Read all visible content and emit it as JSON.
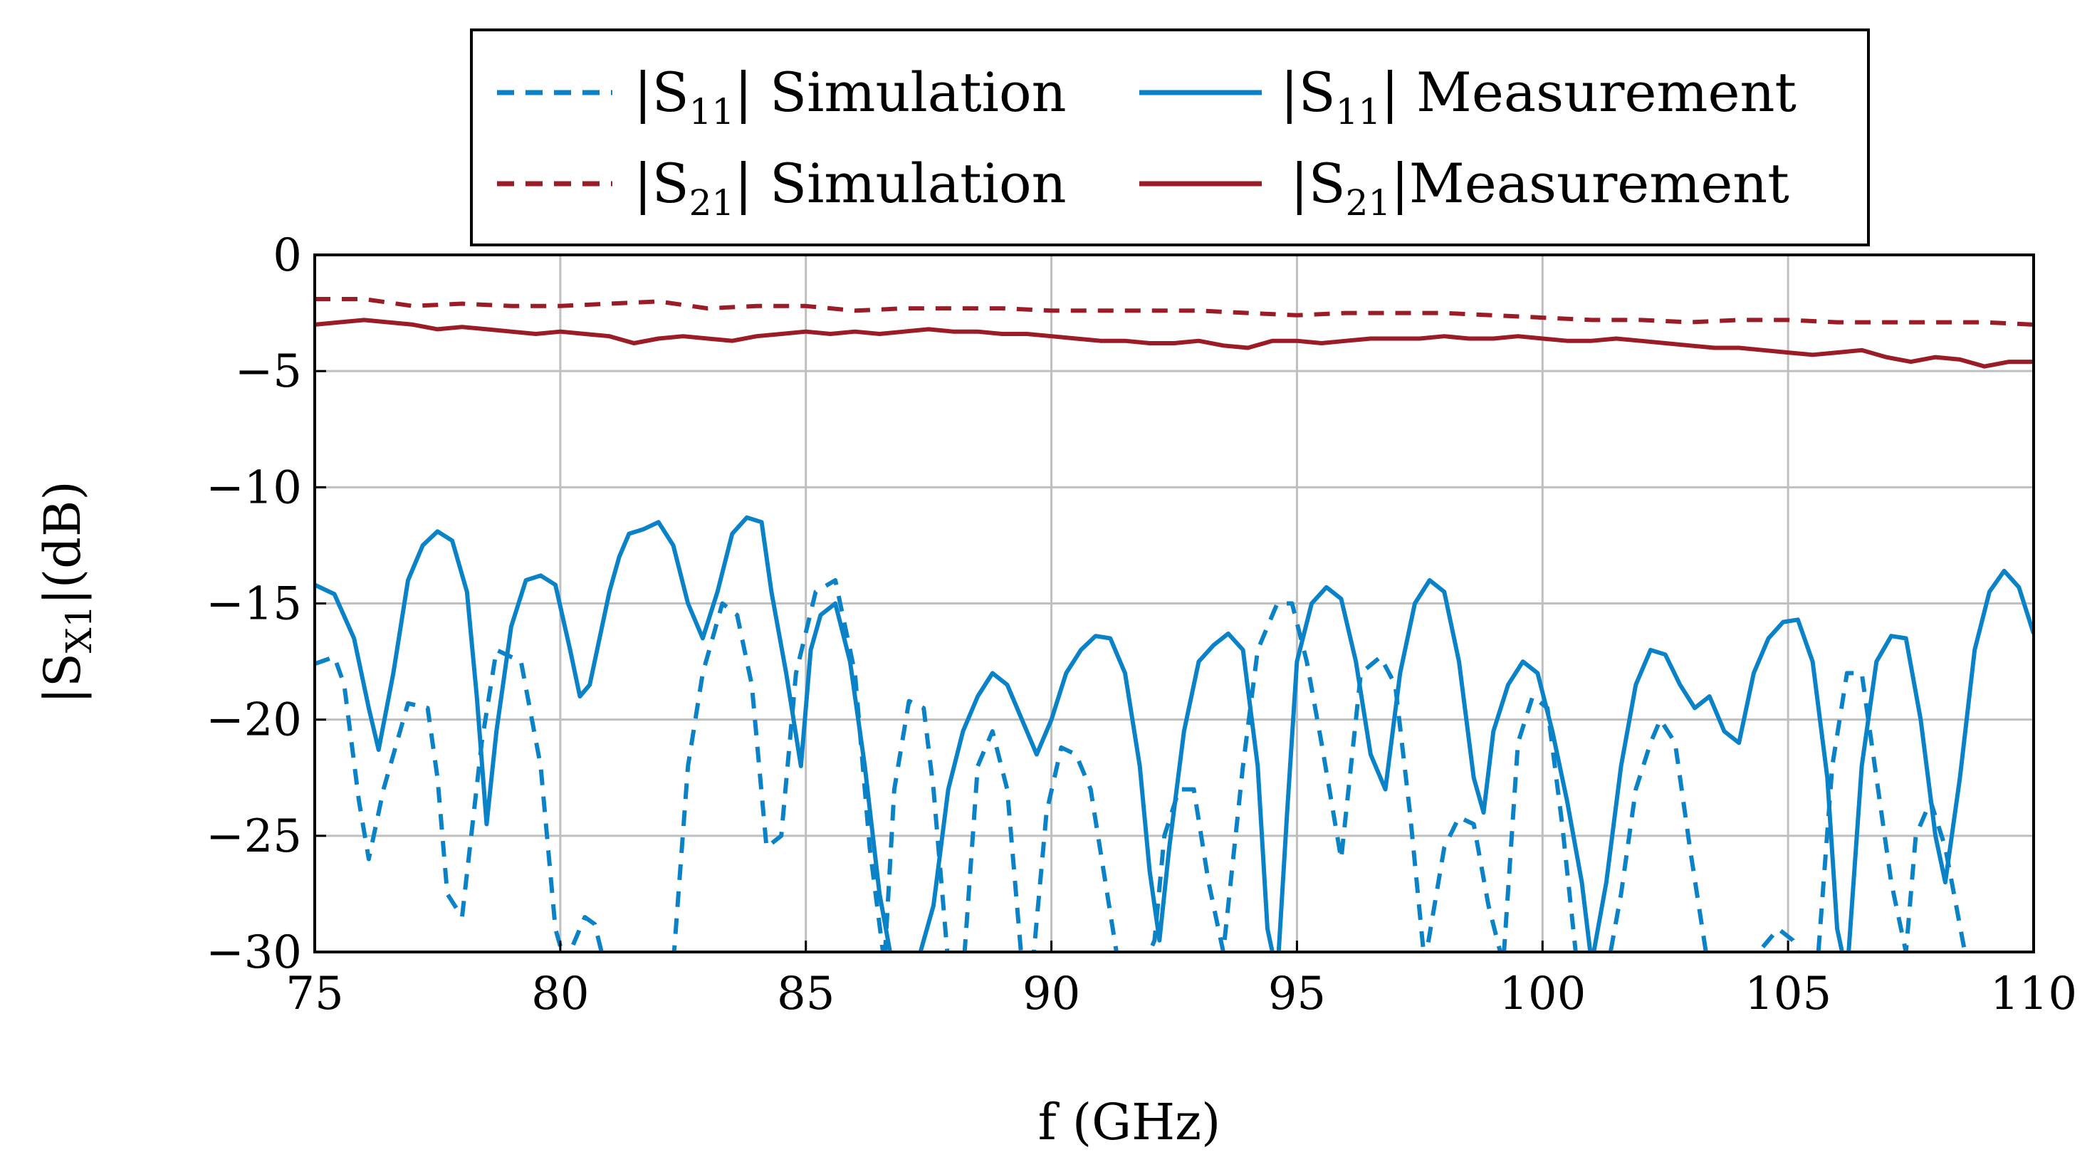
{
  "chart_data": {
    "type": "line",
    "xlabel": "f (GHz)",
    "ylabel": "|S",
    "ylabel_sub": "X1",
    "ylabel_suffix": "|(dB)",
    "xlim": [
      75,
      110
    ],
    "ylim": [
      -30,
      0
    ],
    "xticks": [
      75,
      80,
      85,
      90,
      95,
      100,
      105,
      110
    ],
    "yticks": [
      0,
      -5,
      -10,
      -15,
      -20,
      -25,
      -30
    ],
    "ytick_labels": [
      "0",
      "−5",
      "−10",
      "−15",
      "−20",
      "−25",
      "−30"
    ],
    "grid": true,
    "legend_position": "top-center, above plot",
    "colors": {
      "s11": "#0a82c8",
      "s21": "#9b1b26"
    },
    "series": [
      {
        "name": "|S11| Simulation",
        "legend_pre": "|S",
        "legend_sub": "11",
        "legend_post": "|  Simulation",
        "style": "dashed",
        "color_key": "s11",
        "x": [
          75.0,
          75.4,
          75.6,
          75.9,
          76.1,
          76.4,
          76.9,
          77.3,
          77.5,
          77.7,
          78.0,
          78.4,
          78.7,
          79.2,
          79.6,
          79.9,
          80.1,
          80.3,
          80.5,
          80.7,
          80.9,
          81.2,
          81.5,
          82.0,
          82.3,
          82.6,
          82.9,
          83.3,
          83.6,
          83.9,
          84.2,
          84.5,
          84.8,
          85.2,
          85.6,
          86.0,
          86.3,
          86.6,
          86.8,
          87.1,
          87.4,
          87.6,
          87.9,
          88.2,
          88.5,
          88.8,
          89.1,
          89.4,
          89.6,
          89.9,
          90.2,
          90.5,
          90.8,
          91.1,
          91.4,
          91.8,
          92.1,
          92.3,
          92.6,
          92.9,
          93.2,
          93.5,
          93.9,
          94.2,
          94.6,
          94.9,
          95.2,
          95.5,
          95.9,
          96.3,
          96.7,
          97.0,
          97.3,
          97.6,
          98.0,
          98.3,
          98.6,
          98.9,
          99.2,
          99.5,
          99.8,
          100.1,
          100.4,
          100.7,
          101.0,
          101.3,
          101.6,
          101.9,
          102.2,
          102.4,
          102.7,
          103.0,
          103.4,
          103.8,
          104.1,
          104.4,
          104.8,
          105.1,
          105.4,
          105.6,
          105.9,
          106.2,
          106.5,
          106.8,
          107.1,
          107.4,
          107.6,
          107.9,
          108.2,
          108.6,
          108.9,
          109.2,
          109.5,
          109.8,
          110.0
        ],
        "y": [
          -17.6,
          -17.3,
          -18.5,
          -23.5,
          -26.0,
          -23.0,
          -19.3,
          -19.5,
          -22.5,
          -27.5,
          -28.5,
          -21.0,
          -17.0,
          -17.5,
          -22.0,
          -29.0,
          -30.5,
          -29.5,
          -28.5,
          -28.8,
          -30.5,
          -31.0,
          -31.0,
          -31.0,
          -30.5,
          -22.0,
          -18.0,
          -15.0,
          -15.5,
          -18.5,
          -25.5,
          -25.0,
          -18.0,
          -14.5,
          -14.0,
          -18.0,
          -25.5,
          -30.5,
          -23.0,
          -19.2,
          -19.5,
          -23.0,
          -30.5,
          -31.0,
          -22.0,
          -20.5,
          -23.0,
          -30.5,
          -31.0,
          -24.0,
          -21.2,
          -21.5,
          -23.0,
          -27.0,
          -31.0,
          -31.0,
          -29.5,
          -25.0,
          -23.0,
          -23.0,
          -27.0,
          -30.0,
          -22.0,
          -17.0,
          -15.0,
          -15.0,
          -17.5,
          -21.0,
          -26.0,
          -18.0,
          -17.3,
          -18.5,
          -24.0,
          -30.5,
          -25.5,
          -24.2,
          -24.5,
          -28.0,
          -30.5,
          -21.0,
          -19.0,
          -19.5,
          -24.5,
          -30.5,
          -31.0,
          -31.0,
          -27.5,
          -23.0,
          -21.0,
          -20.0,
          -21.0,
          -25.5,
          -31.0,
          -31.0,
          -31.0,
          -30.0,
          -29.0,
          -29.5,
          -31.0,
          -30.5,
          -22.0,
          -18.0,
          -18.0,
          -22.5,
          -27.0,
          -30.0,
          -25.0,
          -23.5,
          -25.5,
          -30.0,
          -31.0,
          -31.0,
          -31.0,
          -31.0,
          -31.0
        ]
      },
      {
        "name": "|S11| Measurement",
        "legend_pre": "|S",
        "legend_sub": "11",
        "legend_post": "|  Measurement",
        "style": "solid",
        "color_key": "s11",
        "x": [
          75.0,
          75.4,
          75.8,
          76.1,
          76.3,
          76.6,
          76.9,
          77.2,
          77.5,
          77.8,
          78.1,
          78.3,
          78.5,
          78.7,
          79.0,
          79.3,
          79.6,
          79.9,
          80.2,
          80.4,
          80.6,
          80.8,
          81.0,
          81.2,
          81.4,
          81.7,
          82.0,
          82.3,
          82.6,
          82.9,
          83.2,
          83.5,
          83.8,
          84.1,
          84.3,
          84.6,
          84.9,
          85.1,
          85.3,
          85.6,
          85.9,
          86.2,
          86.5,
          86.8,
          87.2,
          87.6,
          87.9,
          88.2,
          88.5,
          88.8,
          89.1,
          89.4,
          89.7,
          90.0,
          90.3,
          90.6,
          90.9,
          91.2,
          91.5,
          91.8,
          92.0,
          92.2,
          92.4,
          92.7,
          93.0,
          93.3,
          93.6,
          93.9,
          94.2,
          94.4,
          94.6,
          94.8,
          95.0,
          95.3,
          95.6,
          95.9,
          96.2,
          96.5,
          96.8,
          97.1,
          97.4,
          97.7,
          98.0,
          98.3,
          98.6,
          98.8,
          99.0,
          99.3,
          99.6,
          99.9,
          100.2,
          100.5,
          100.8,
          101.0,
          101.3,
          101.6,
          101.9,
          102.2,
          102.5,
          102.8,
          103.1,
          103.4,
          103.7,
          104.0,
          104.3,
          104.6,
          104.9,
          105.2,
          105.5,
          105.8,
          106.0,
          106.2,
          106.5,
          106.8,
          107.1,
          107.4,
          107.7,
          108.0,
          108.2,
          108.5,
          108.8,
          109.1,
          109.4,
          109.7,
          110.0
        ],
        "y": [
          -14.2,
          -14.6,
          -16.5,
          -19.5,
          -21.3,
          -18.0,
          -14.0,
          -12.5,
          -11.9,
          -12.3,
          -14.5,
          -19.0,
          -24.5,
          -20.5,
          -16.0,
          -14.0,
          -13.8,
          -14.2,
          -17.0,
          -19.0,
          -18.5,
          -16.5,
          -14.5,
          -13.0,
          -12.0,
          -11.8,
          -11.5,
          -12.5,
          -15.0,
          -16.5,
          -14.5,
          -12.0,
          -11.3,
          -11.5,
          -14.5,
          -18.0,
          -22.0,
          -17.0,
          -15.5,
          -15.0,
          -17.5,
          -22.0,
          -27.5,
          -31.0,
          -31.0,
          -28.0,
          -23.0,
          -20.5,
          -19.0,
          -18.0,
          -18.5,
          -20.0,
          -21.5,
          -20.0,
          -18.0,
          -17.0,
          -16.4,
          -16.5,
          -18.0,
          -22.0,
          -26.5,
          -29.5,
          -25.5,
          -20.5,
          -17.5,
          -16.8,
          -16.3,
          -17.0,
          -22.0,
          -29.0,
          -31.0,
          -24.0,
          -17.5,
          -15.0,
          -14.3,
          -14.8,
          -17.5,
          -21.5,
          -23.0,
          -18.0,
          -15.0,
          -14.0,
          -14.5,
          -17.5,
          -22.5,
          -24.0,
          -20.5,
          -18.5,
          -17.5,
          -18.0,
          -20.5,
          -23.5,
          -27.0,
          -30.5,
          -27.0,
          -22.0,
          -18.5,
          -17.0,
          -17.2,
          -18.5,
          -19.5,
          -19.0,
          -20.5,
          -21.0,
          -18.0,
          -16.5,
          -15.8,
          -15.7,
          -17.5,
          -22.5,
          -29.0,
          -31.0,
          -22.0,
          -17.5,
          -16.4,
          -16.5,
          -20.0,
          -25.0,
          -27.0,
          -22.5,
          -17.0,
          -14.5,
          -13.6,
          -14.3,
          -16.3
        ]
      },
      {
        "name": "|S21| Simulation",
        "legend_pre": "|S",
        "legend_sub": "21",
        "legend_post": "|  Simulation",
        "style": "dashed",
        "color_key": "s21",
        "x": [
          75.0,
          76.0,
          77.0,
          78.0,
          79.0,
          80.0,
          81.0,
          82.0,
          83.0,
          84.0,
          85.0,
          86.0,
          87.0,
          88.0,
          89.0,
          90.0,
          91.0,
          92.0,
          93.0,
          94.0,
          95.0,
          96.0,
          97.0,
          98.0,
          99.0,
          100.0,
          101.0,
          102.0,
          103.0,
          104.0,
          105.0,
          106.0,
          107.0,
          108.0,
          109.0,
          110.0
        ],
        "y": [
          -1.9,
          -1.9,
          -2.2,
          -2.1,
          -2.2,
          -2.2,
          -2.1,
          -2.0,
          -2.3,
          -2.2,
          -2.2,
          -2.4,
          -2.3,
          -2.3,
          -2.3,
          -2.4,
          -2.4,
          -2.4,
          -2.4,
          -2.5,
          -2.6,
          -2.5,
          -2.5,
          -2.5,
          -2.6,
          -2.7,
          -2.8,
          -2.8,
          -2.9,
          -2.8,
          -2.8,
          -2.9,
          -2.9,
          -2.9,
          -2.9,
          -3.0
        ]
      },
      {
        "name": "|S21|Measurement",
        "legend_pre": "|S",
        "legend_sub": "21",
        "legend_post": "|Measurement",
        "style": "solid",
        "color_key": "s21",
        "x": [
          75.0,
          75.5,
          76.0,
          76.5,
          77.0,
          77.5,
          78.0,
          78.5,
          79.0,
          79.5,
          80.0,
          80.5,
          81.0,
          81.5,
          82.0,
          82.5,
          83.0,
          83.5,
          84.0,
          84.5,
          85.0,
          85.5,
          86.0,
          86.5,
          87.0,
          87.5,
          88.0,
          88.5,
          89.0,
          89.5,
          90.0,
          90.5,
          91.0,
          91.5,
          92.0,
          92.5,
          93.0,
          93.5,
          94.0,
          94.5,
          95.0,
          95.5,
          96.0,
          96.5,
          97.0,
          97.5,
          98.0,
          98.5,
          99.0,
          99.5,
          100.0,
          100.5,
          101.0,
          101.5,
          102.0,
          102.5,
          103.0,
          103.5,
          104.0,
          104.5,
          105.0,
          105.5,
          106.0,
          106.5,
          107.0,
          107.5,
          108.0,
          108.5,
          109.0,
          109.5,
          110.0
        ],
        "y": [
          -3.0,
          -2.9,
          -2.8,
          -2.9,
          -3.0,
          -3.2,
          -3.1,
          -3.2,
          -3.3,
          -3.4,
          -3.3,
          -3.4,
          -3.5,
          -3.8,
          -3.6,
          -3.5,
          -3.6,
          -3.7,
          -3.5,
          -3.4,
          -3.3,
          -3.4,
          -3.3,
          -3.4,
          -3.3,
          -3.2,
          -3.3,
          -3.3,
          -3.4,
          -3.4,
          -3.5,
          -3.6,
          -3.7,
          -3.7,
          -3.8,
          -3.8,
          -3.7,
          -3.9,
          -4.0,
          -3.7,
          -3.7,
          -3.8,
          -3.7,
          -3.6,
          -3.6,
          -3.6,
          -3.5,
          -3.6,
          -3.6,
          -3.5,
          -3.6,
          -3.7,
          -3.7,
          -3.6,
          -3.7,
          -3.8,
          -3.9,
          -4.0,
          -4.0,
          -4.1,
          -4.2,
          -4.3,
          -4.2,
          -4.1,
          -4.4,
          -4.6,
          -4.4,
          -4.5,
          -4.8,
          -4.6,
          -4.6
        ]
      }
    ]
  }
}
